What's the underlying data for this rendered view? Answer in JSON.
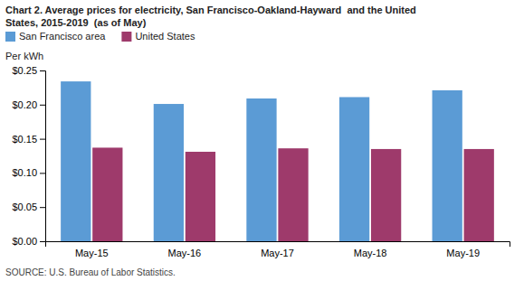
{
  "chart_data": {
    "type": "bar",
    "title": [
      "Chart 2. Average prices for electricity, San Francisco-Oakland-Hayward  and the United",
      "States, 2015-2019  (as of May)"
    ],
    "y_label": "Per kWh",
    "source": "SOURCE: U.S. Bureau of Labor Statistics.",
    "categories": [
      "May-15",
      "May-16",
      "May-17",
      "May-18",
      "May-19"
    ],
    "series": [
      {
        "name": "San Francisco area",
        "color": "#5b9bd5",
        "values": [
          0.234,
          0.201,
          0.209,
          0.211,
          0.221
        ]
      },
      {
        "name": "United States",
        "color": "#9e3a6b",
        "values": [
          0.137,
          0.131,
          0.136,
          0.135,
          0.135
        ]
      }
    ],
    "ylim": [
      0,
      0.25
    ],
    "yticks": [
      {
        "value": 0.0,
        "label": "$0.00"
      },
      {
        "value": 0.05,
        "label": "$0.05"
      },
      {
        "value": 0.1,
        "label": "$0.10"
      },
      {
        "value": 0.15,
        "label": "$0.15"
      },
      {
        "value": 0.2,
        "label": "$0.20"
      },
      {
        "value": 0.25,
        "label": "$0.25"
      }
    ],
    "legend": "upper left",
    "grid": false
  }
}
